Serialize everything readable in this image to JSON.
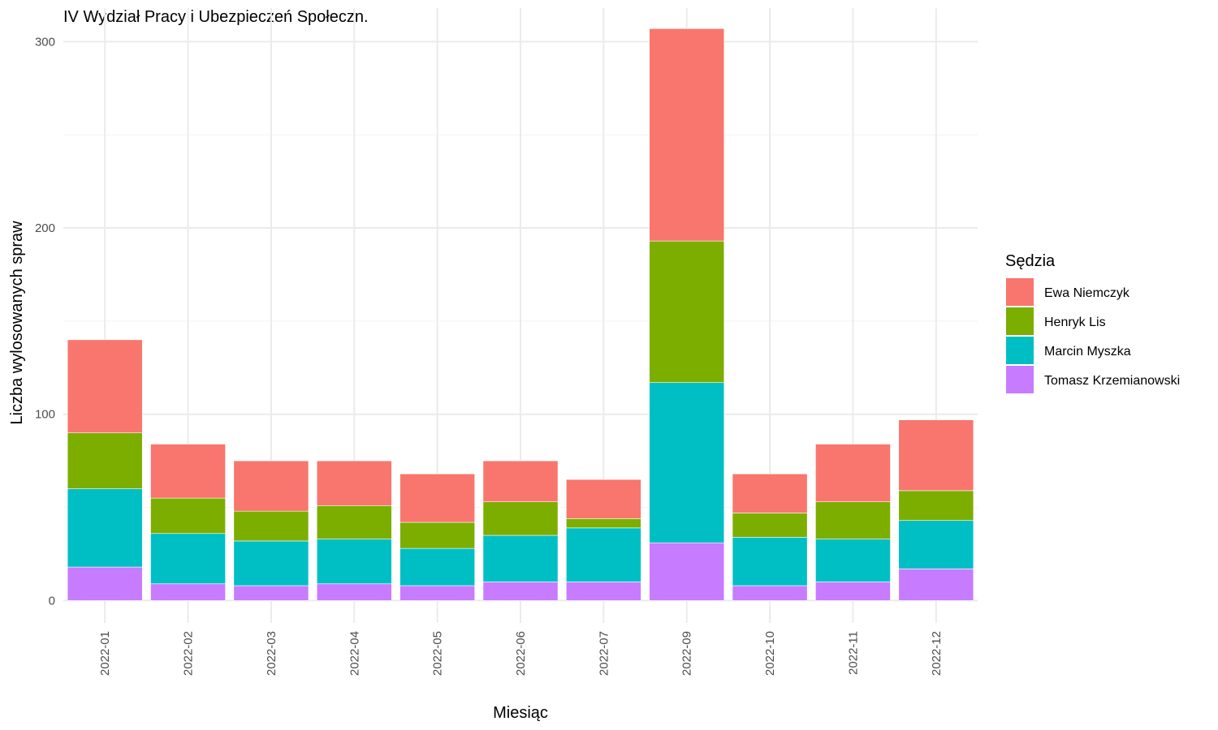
{
  "chart_data": {
    "type": "bar",
    "stacked": true,
    "title": "IV Wydział Pracy i Ubezpieczeń Społeczn.",
    "xlabel": "Miesiąc",
    "ylabel": "Liczba wylosowanych spraw",
    "ylim": [
      -12,
      318
    ],
    "yticks": [
      0,
      100,
      200,
      300
    ],
    "grid": true,
    "legend": {
      "title": "Sędzia",
      "position": "right"
    },
    "categories": [
      "2022-01",
      "2022-02",
      "2022-03",
      "2022-04",
      "2022-05",
      "2022-06",
      "2022-07",
      "2022-09",
      "2022-10",
      "2022-11",
      "2022-12"
    ],
    "series": [
      {
        "name": "Tomasz Krzemianowski",
        "color": "#C77CFF",
        "values": [
          18,
          9,
          8,
          9,
          8,
          10,
          10,
          31,
          8,
          10,
          17
        ]
      },
      {
        "name": "Marcin Myszka",
        "color": "#00BFC4",
        "values": [
          42,
          27,
          24,
          24,
          20,
          25,
          29,
          86,
          26,
          23,
          26
        ]
      },
      {
        "name": "Henryk Lis",
        "color": "#7CAE00",
        "values": [
          30,
          19,
          16,
          18,
          14,
          18,
          5,
          76,
          13,
          20,
          16
        ]
      },
      {
        "name": "Ewa Niemczyk",
        "color": "#F8766D",
        "values": [
          50,
          29,
          27,
          24,
          26,
          22,
          21,
          114,
          21,
          31,
          38
        ]
      }
    ],
    "legend_order": [
      "Ewa Niemczyk",
      "Henryk Lis",
      "Marcin Myszka",
      "Tomasz Krzemianowski"
    ]
  }
}
